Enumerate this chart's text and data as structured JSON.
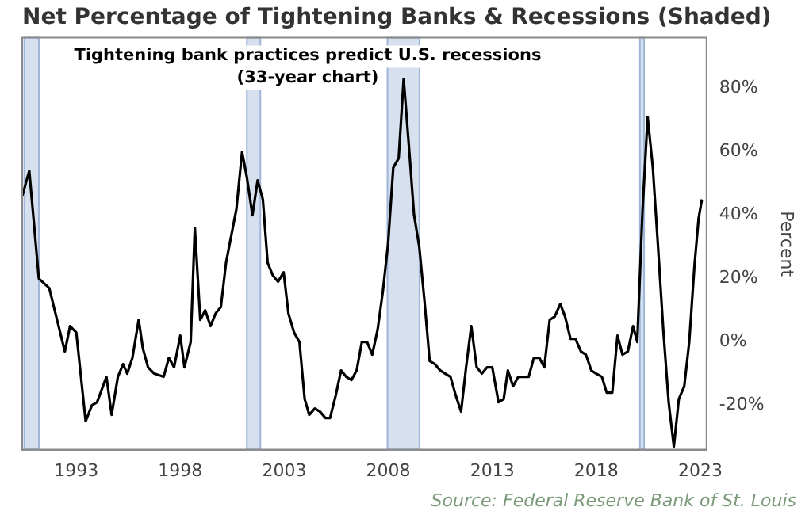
{
  "chart_data": {
    "type": "line",
    "title": "Net Percentage of Tightening Banks & Recessions (Shaded)",
    "ylabel": "Percent",
    "annotations": [
      "Tightening bank practices predict U.S. recessions",
      "(33-year chart)",
      "Source: Federal Reserve Bank of St. Louis"
    ],
    "series": [
      {
        "color": "#000000",
        "x": [
          1990.4,
          1990.74,
          1991.2,
          1991.7,
          1992.45,
          1992.7,
          1993,
          1993.45,
          1993.75,
          1994,
          1994.45,
          1994.7,
          1995,
          1995.25,
          1995.45,
          1995.7,
          1996,
          1996.2,
          1996.45,
          1996.75,
          1997.2,
          1997.45,
          1997.7,
          1998,
          1998.2,
          1998.5,
          1998.7,
          1998.96,
          1999.2,
          1999.45,
          1999.7,
          1999.95,
          2000.2,
          2000.7,
          2000.97,
          2001.2,
          2001.47,
          2001.72,
          2001.97,
          2002.2,
          2002.45,
          2002.7,
          2002.97,
          2003.2,
          2003.47,
          2003.73,
          2003.98,
          2004.2,
          2004.47,
          2004.72,
          2004.98,
          2005.2,
          2005.47,
          2005.73,
          2005.98,
          2006.23,
          2006.48,
          2006.73,
          2006.98,
          2007.23,
          2007.49,
          2007.74,
          2007.99,
          2008.24,
          2008.5,
          2008.74,
          2008.99,
          2009.24,
          2009.49,
          2009.74,
          2009.99,
          2010.24,
          2010.5,
          2010.74,
          2010.99,
          2011.25,
          2011.5,
          2011.74,
          2011.99,
          2012.25,
          2012.5,
          2012.75,
          2013,
          2013.3,
          2013.55,
          2013.75,
          2014,
          2014.25,
          2014.5,
          2014.75,
          2015,
          2015.26,
          2015.5,
          2015.76,
          2016,
          2016.27,
          2016.5,
          2016.76,
          2017,
          2017.26,
          2017.5,
          2017.76,
          2018,
          2018.27,
          2018.5,
          2018.77,
          2019.02,
          2019.26,
          2019.52,
          2019.77,
          2019.97,
          2020.22,
          2020.47,
          2020.72,
          2020.97,
          2021.22,
          2021.48,
          2021.73,
          2021.97,
          2022.23,
          2022.47,
          2022.72,
          2022.92,
          2023.08
        ],
        "values": [
          46,
          54,
          20,
          17,
          -3,
          5,
          3,
          -25,
          -20,
          -19,
          -11,
          -23,
          -11,
          -7,
          -10,
          -5,
          7,
          -2,
          -8,
          -10,
          -11,
          -5,
          -8,
          2,
          -8,
          0,
          36,
          7,
          10,
          5,
          9,
          11,
          25,
          42,
          60,
          52,
          40,
          51,
          45,
          25,
          21,
          19,
          22,
          9,
          3,
          0,
          -18,
          -23,
          -21,
          -22,
          -24,
          -24,
          -17,
          -9,
          -11,
          -12,
          -9,
          0,
          0,
          -4,
          4,
          16,
          31,
          55,
          58,
          83,
          62,
          40,
          30,
          13,
          -6,
          -7,
          -9,
          -10,
          -11,
          -17,
          -22,
          -8,
          5,
          -8,
          -10,
          -8,
          -8,
          -19,
          -18,
          -9,
          -14,
          -11,
          -11,
          -11,
          -5,
          -5,
          -8,
          7,
          8,
          12,
          8,
          1,
          1,
          -3,
          -4,
          -9,
          -10,
          -11,
          -16,
          -16,
          2,
          -4,
          -3,
          5,
          0,
          41,
          71,
          55,
          30,
          4,
          -19,
          -33,
          -18,
          -14,
          0,
          24,
          39,
          45
        ]
      }
    ],
    "xlim": [
      1990.4,
      2023.3
    ],
    "xticks": [
      1993,
      1998,
      2003,
      2008,
      2013,
      2018,
      2023
    ],
    "ylim": [
      -34,
      96
    ],
    "yticks": [
      {
        "value": -20,
        "label": "-20%"
      },
      {
        "value": 0,
        "label": "0%"
      },
      {
        "value": 20,
        "label": "20%"
      },
      {
        "value": 40,
        "label": "40%"
      },
      {
        "value": 60,
        "label": "60%"
      },
      {
        "value": 80,
        "label": "80%"
      }
    ],
    "bands": [
      {
        "axis": "x",
        "from": 1990.5,
        "to": 1991.2,
        "color": "#d6e0ee"
      },
      {
        "axis": "x",
        "from": 2001.2,
        "to": 2001.85,
        "color": "#d6e0ee"
      },
      {
        "axis": "x",
        "from": 2007.96,
        "to": 2009.5,
        "color": "#d6e0ee"
      },
      {
        "axis": "x",
        "from": 2020.1,
        "to": 2020.3,
        "color": "#d6e0ee"
      }
    ],
    "grid": false,
    "legend": false,
    "marker": "none",
    "line_style": "solid"
  }
}
